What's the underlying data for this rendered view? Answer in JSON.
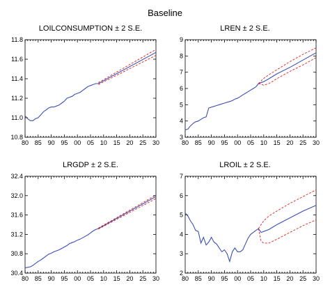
{
  "figure_title": "Baseline",
  "chart_data": [
    {
      "type": "line",
      "title": "LOILCONSUMPTION ± 2 S.E.",
      "x_tick_labels": [
        "80",
        "85",
        "90",
        "95",
        "00",
        "05",
        "10",
        "15",
        "20",
        "25",
        "30"
      ],
      "xlim": [
        1980,
        2030
      ],
      "ylim": [
        10.8,
        11.8
      ],
      "y_ticks": [
        10.8,
        11.0,
        11.2,
        11.4,
        11.6,
        11.8
      ],
      "y_tick_labels": [
        "10.8",
        "11.0",
        "11.2",
        "11.4",
        "11.6",
        "11.8"
      ],
      "series": [
        {
          "role": "forecast",
          "x": [
            1980,
            1981,
            1982,
            1983,
            1984,
            1985,
            1986,
            1987,
            1988,
            1989,
            1990,
            1991,
            1992,
            1993,
            1994,
            1995,
            1996,
            1997,
            1998,
            1999,
            2000,
            2001,
            2002,
            2003,
            2004,
            2005,
            2006,
            2007,
            2008,
            2030
          ],
          "y": [
            11.02,
            10.99,
            10.97,
            10.97,
            10.99,
            11.0,
            11.03,
            11.06,
            11.08,
            11.1,
            11.11,
            11.11,
            11.12,
            11.13,
            11.15,
            11.17,
            11.2,
            11.21,
            11.22,
            11.24,
            11.25,
            11.26,
            11.28,
            11.3,
            11.32,
            11.33,
            11.34,
            11.35,
            11.35,
            11.67
          ]
        },
        {
          "role": "upper",
          "x": [
            2008,
            2030
          ],
          "y": [
            11.36,
            11.7
          ]
        },
        {
          "role": "lower",
          "x": [
            2008,
            2030
          ],
          "y": [
            11.34,
            11.64
          ]
        }
      ]
    },
    {
      "type": "line",
      "title": "LREN ± 2 S.E.",
      "x_tick_labels": [
        "80",
        "85",
        "90",
        "95",
        "00",
        "05",
        "10",
        "15",
        "20",
        "25",
        "30"
      ],
      "xlim": [
        1980,
        2030
      ],
      "ylim": [
        3,
        9
      ],
      "y_ticks": [
        3,
        4,
        5,
        6,
        7,
        8,
        9
      ],
      "y_tick_labels": [
        "3",
        "4",
        "5",
        "6",
        "7",
        "8",
        "9"
      ],
      "series": [
        {
          "role": "forecast",
          "x": [
            1980,
            1981,
            1982,
            1983,
            1984,
            1985,
            1986,
            1987,
            1988,
            1989,
            1990,
            1991,
            1992,
            1993,
            1994,
            1995,
            1996,
            1997,
            1998,
            1999,
            2000,
            2001,
            2002,
            2003,
            2004,
            2005,
            2006,
            2007,
            2008,
            2010,
            2012,
            2015,
            2020,
            2025,
            2030
          ],
          "y": [
            3.45,
            3.5,
            3.7,
            3.85,
            3.95,
            4.0,
            4.1,
            4.2,
            4.25,
            4.8,
            4.85,
            4.9,
            4.95,
            5.0,
            5.05,
            5.1,
            5.15,
            5.2,
            5.25,
            5.35,
            5.4,
            5.5,
            5.6,
            5.7,
            5.8,
            5.9,
            6.0,
            6.1,
            6.3,
            6.42,
            6.6,
            6.9,
            7.3,
            7.75,
            8.2
          ]
        },
        {
          "role": "upper",
          "x": [
            2008,
            2010,
            2012,
            2015,
            2020,
            2025,
            2030
          ],
          "y": [
            6.3,
            6.62,
            6.85,
            7.15,
            7.65,
            8.1,
            8.5
          ]
        },
        {
          "role": "lower",
          "x": [
            2008,
            2010,
            2012,
            2015,
            2020,
            2025,
            2030
          ],
          "y": [
            6.3,
            6.2,
            6.3,
            6.6,
            7.05,
            7.45,
            7.9
          ]
        }
      ]
    },
    {
      "type": "line",
      "title": "LRGDP ± 2 S.E.",
      "x_tick_labels": [
        "80",
        "85",
        "90",
        "95",
        "00",
        "05",
        "10",
        "15",
        "20",
        "25",
        "30"
      ],
      "xlim": [
        1980,
        2030
      ],
      "ylim": [
        30.4,
        32.4
      ],
      "y_ticks": [
        30.4,
        30.8,
        31.2,
        31.6,
        32.0,
        32.4
      ],
      "y_tick_labels": [
        "30.4",
        "30.8",
        "31.2",
        "31.6",
        "32.0",
        "32.4"
      ],
      "series": [
        {
          "role": "forecast",
          "x": [
            1980,
            1981,
            1982,
            1983,
            1984,
            1985,
            1986,
            1987,
            1988,
            1989,
            1990,
            1991,
            1992,
            1993,
            1994,
            1995,
            1996,
            1997,
            1998,
            1999,
            2000,
            2001,
            2002,
            2003,
            2004,
            2005,
            2006,
            2007,
            2008,
            2030
          ],
          "y": [
            30.51,
            30.52,
            30.53,
            30.56,
            30.6,
            30.64,
            30.67,
            30.71,
            30.75,
            30.79,
            30.81,
            30.84,
            30.86,
            30.88,
            30.91,
            30.94,
            30.97,
            31.01,
            31.03,
            31.05,
            31.08,
            31.1,
            31.13,
            31.16,
            31.19,
            31.23,
            31.27,
            31.3,
            31.32,
            31.98
          ]
        },
        {
          "role": "upper",
          "x": [
            2008,
            2030
          ],
          "y": [
            31.33,
            32.01
          ]
        },
        {
          "role": "lower",
          "x": [
            2008,
            2030
          ],
          "y": [
            31.31,
            31.94
          ]
        }
      ]
    },
    {
      "type": "line",
      "title": "LROIL ± 2 S.E.",
      "x_tick_labels": [
        "80",
        "85",
        "90",
        "95",
        "00",
        "05",
        "10",
        "15",
        "20",
        "25",
        "30"
      ],
      "xlim": [
        1980,
        2030
      ],
      "ylim": [
        2,
        7
      ],
      "y_ticks": [
        2,
        3,
        4,
        5,
        6,
        7
      ],
      "y_tick_labels": [
        "2",
        "3",
        "4",
        "5",
        "6",
        "7"
      ],
      "series": [
        {
          "role": "forecast",
          "x": [
            1980,
            1981,
            1982,
            1983,
            1984,
            1985,
            1986,
            1987,
            1988,
            1989,
            1990,
            1991,
            1992,
            1993,
            1994,
            1995,
            1996,
            1997,
            1998,
            1999,
            2000,
            2001,
            2002,
            2003,
            2004,
            2005,
            2006,
            2007,
            2008,
            2009,
            2010,
            2012,
            2015,
            2020,
            2025,
            2030
          ],
          "y": [
            5.1,
            4.95,
            4.7,
            4.5,
            4.2,
            4.15,
            3.55,
            3.85,
            3.45,
            3.6,
            3.85,
            3.6,
            3.5,
            3.3,
            3.1,
            3.2,
            3.0,
            2.6,
            3.1,
            3.3,
            3.1,
            3.1,
            3.2,
            3.5,
            3.8,
            4.0,
            4.1,
            4.2,
            4.3,
            4.1,
            4.15,
            4.25,
            4.5,
            4.85,
            5.2,
            5.5
          ]
        },
        {
          "role": "upper",
          "x": [
            2008,
            2009,
            2010,
            2012,
            2015,
            2020,
            2025,
            2030
          ],
          "y": [
            4.3,
            4.5,
            4.7,
            4.95,
            5.2,
            5.6,
            5.95,
            6.3
          ]
        },
        {
          "role": "lower",
          "x": [
            2008,
            2009,
            2010,
            2012,
            2015,
            2020,
            2025,
            2030
          ],
          "y": [
            4.3,
            3.65,
            3.55,
            3.55,
            3.75,
            4.1,
            4.45,
            4.75
          ]
        }
      ]
    }
  ]
}
